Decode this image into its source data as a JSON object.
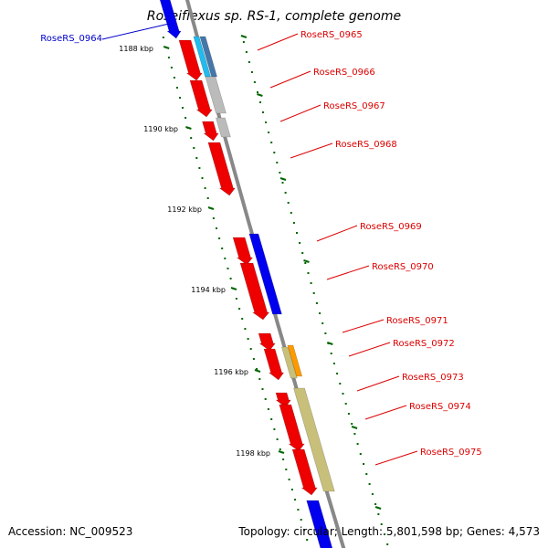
{
  "title": "Roseiflexus sp. RS-1, complete genome",
  "footer": {
    "accession": "Accession: NC_009523",
    "summary": "Topology: circular; Length: 5,801,598 bp; Genes: 4,573"
  },
  "kbp_labels": [
    "1188 kbp",
    "1190 kbp",
    "1192 kbp",
    "1194 kbp",
    "1196 kbp",
    "1198 kbp"
  ],
  "gene_labels": [
    {
      "name": "RoseRS_0964",
      "color": "#0000cc"
    },
    {
      "name": "RoseRS_0965",
      "color": "#dd0000"
    },
    {
      "name": "RoseRS_0966",
      "color": "#dd0000"
    },
    {
      "name": "RoseRS_0967",
      "color": "#dd0000"
    },
    {
      "name": "RoseRS_0968",
      "color": "#dd0000"
    },
    {
      "name": "RoseRS_0969",
      "color": "#dd0000"
    },
    {
      "name": "RoseRS_0970",
      "color": "#dd0000"
    },
    {
      "name": "RoseRS_0971",
      "color": "#dd0000"
    },
    {
      "name": "RoseRS_0972",
      "color": "#dd0000"
    },
    {
      "name": "RoseRS_0973",
      "color": "#dd0000"
    },
    {
      "name": "RoseRS_0974",
      "color": "#dd0000"
    },
    {
      "name": "RoseRS_0975",
      "color": "#dd0000"
    }
  ],
  "colors": {
    "gene_red": "#ee0000",
    "gene_blue": "#0000ee",
    "cog_cyan": "#22bbee",
    "cog_steel": "#4477aa",
    "cog_gray": "#bbbbbb",
    "cog_khaki": "#c8c07a",
    "cog_orange": "#ff9900",
    "backbone": "#888888",
    "tick_green": "#006600"
  }
}
